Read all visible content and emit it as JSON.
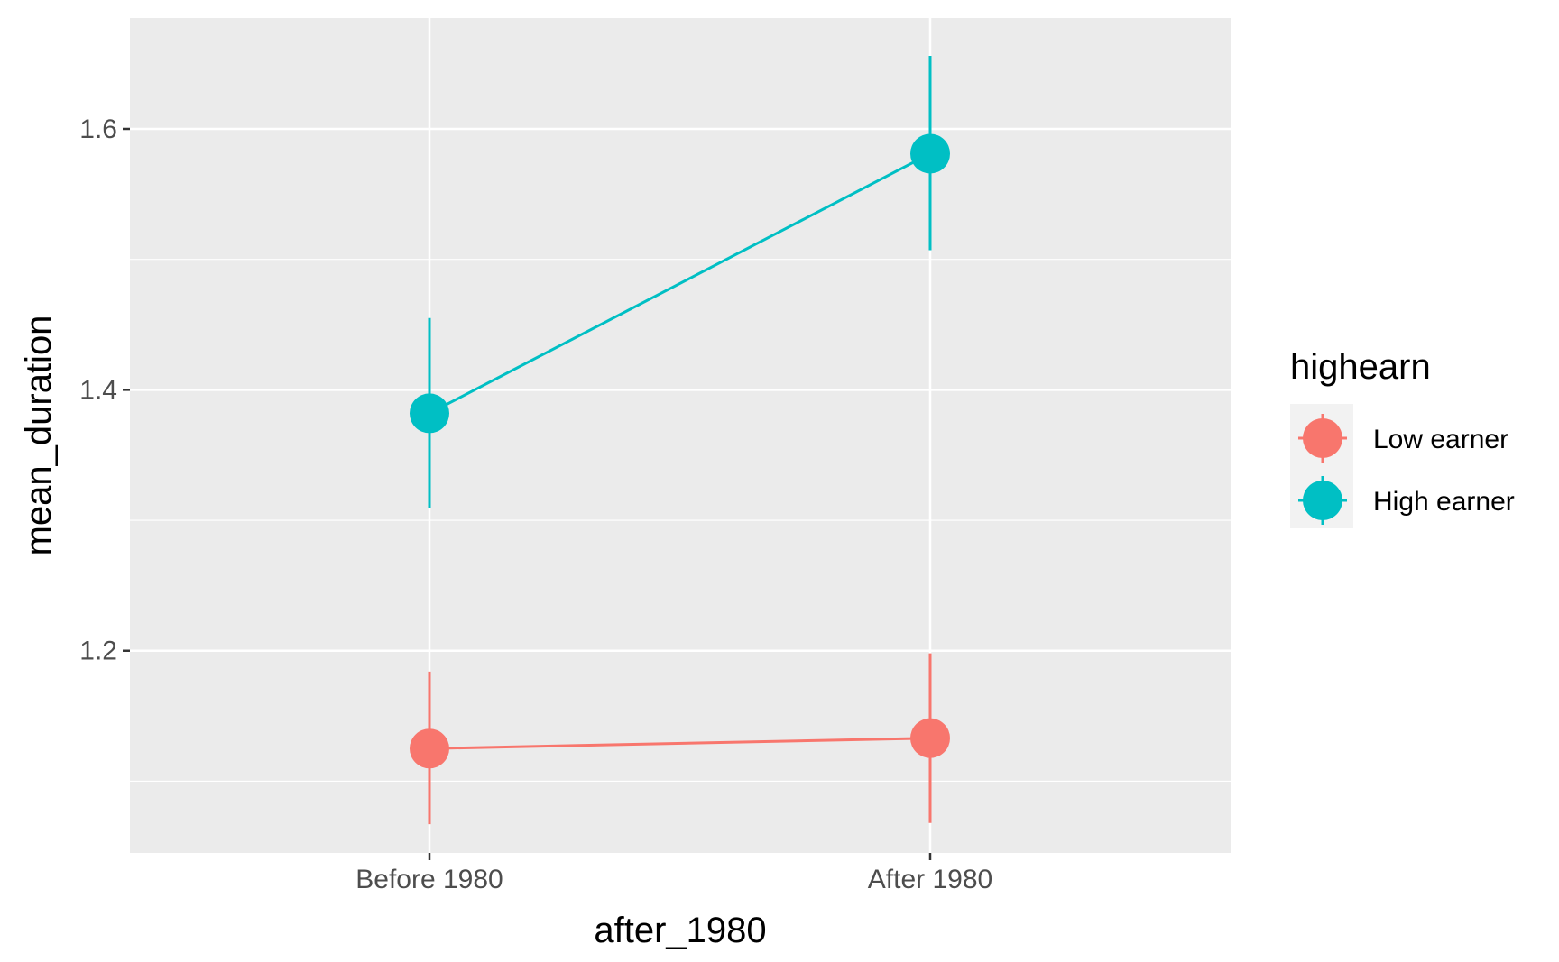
{
  "chart_data": {
    "type": "line",
    "xlabel": "after_1980",
    "ylabel": "mean_duration",
    "categories": [
      "Before 1980",
      "After 1980"
    ],
    "ylim": [
      1.045,
      1.685
    ],
    "yticks": [
      1.2,
      1.4,
      1.6
    ],
    "ytick_labels": [
      "1.2",
      "1.4",
      "1.6"
    ],
    "grid": true,
    "legend": {
      "title": "highearn",
      "placement": "right"
    },
    "series": [
      {
        "name": "Low earner",
        "color": "#F8766D",
        "values": [
          1.125,
          1.133
        ],
        "lower": [
          1.067,
          1.068
        ],
        "upper": [
          1.184,
          1.198
        ]
      },
      {
        "name": "High earner",
        "color": "#00BFC4",
        "values": [
          1.382,
          1.581
        ],
        "lower": [
          1.309,
          1.507
        ],
        "upper": [
          1.455,
          1.656
        ]
      }
    ]
  }
}
